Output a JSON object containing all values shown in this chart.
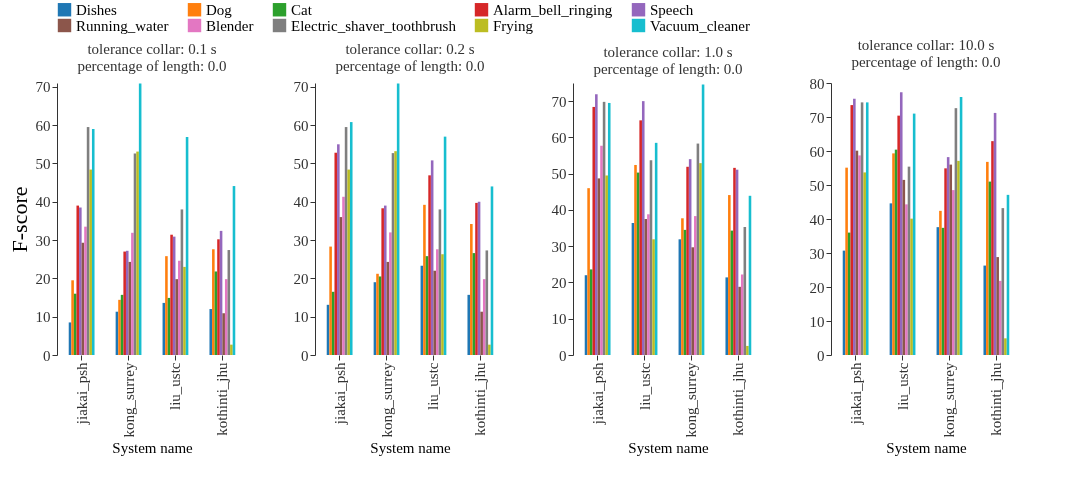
{
  "chart_data": [
    {
      "type": "bar",
      "title": "tolerance collar: 0.1 s\npercentage of length: 0.0",
      "xlabel": "System name",
      "ylabel": "F-score",
      "legend": "top",
      "grid": false,
      "categories": [
        "jiakai_psh",
        "kong_surrey",
        "liu_ustc",
        "kothinti_jhu"
      ],
      "ylim": [
        0,
        71
      ],
      "yticks": [
        0,
        10,
        20,
        30,
        40,
        50,
        60,
        70
      ],
      "series": [
        {
          "name": "Dishes",
          "color": "#1f77b4",
          "values": [
            8.5,
            11.3,
            13.6,
            12
          ]
        },
        {
          "name": "Dog",
          "color": "#ff7f0e",
          "values": [
            19.5,
            14.4,
            25.8,
            27.6
          ]
        },
        {
          "name": "Cat",
          "color": "#2ca02c",
          "values": [
            16,
            15.7,
            14.9,
            21.8
          ]
        },
        {
          "name": "Alarm_bell_ringing",
          "color": "#d62728",
          "values": [
            39,
            27,
            31.4,
            30.2
          ]
        },
        {
          "name": "Speech",
          "color": "#9467bd",
          "values": [
            38.5,
            27.2,
            30.9,
            32.4
          ]
        },
        {
          "name": "Running_water",
          "color": "#8c564b",
          "values": [
            29.3,
            24.3,
            19.8,
            10.9
          ]
        },
        {
          "name": "Blender",
          "color": "#e377c2",
          "values": [
            33.5,
            31.9,
            24.6,
            19.8
          ]
        },
        {
          "name": "Electric_shaver_toothbrush",
          "color": "#7f7f7f",
          "values": [
            59.5,
            52.6,
            38,
            27.4
          ]
        },
        {
          "name": "Frying",
          "color": "#bcbd22",
          "values": [
            48.4,
            53.1,
            23,
            2.7
          ]
        },
        {
          "name": "Vacuum_cleaner",
          "color": "#17becf",
          "values": [
            59,
            70.9,
            56.9,
            44.1
          ]
        }
      ]
    },
    {
      "type": "bar",
      "title": "tolerance collar: 0.2 s\npercentage of length: 0.0",
      "xlabel": "System name",
      "grid": false,
      "categories": [
        "jiakai_psh",
        "kong_surrey",
        "liu_ustc",
        "kothinti_jhu"
      ],
      "ylim": [
        0,
        71
      ],
      "yticks": [
        0,
        10,
        20,
        30,
        40,
        50,
        60,
        70
      ],
      "series": [
        {
          "name": "Dishes",
          "color": "#1f77b4",
          "values": [
            13.1,
            19,
            23.3,
            15.7
          ]
        },
        {
          "name": "Dog",
          "color": "#ff7f0e",
          "values": [
            28.3,
            21.2,
            39.2,
            34.2
          ]
        },
        {
          "name": "Cat",
          "color": "#2ca02c",
          "values": [
            16.5,
            20.5,
            25.8,
            26.6
          ]
        },
        {
          "name": "Alarm_bell_ringing",
          "color": "#d62728",
          "values": [
            52.8,
            38.3,
            46.9,
            39.7
          ]
        },
        {
          "name": "Speech",
          "color": "#9467bd",
          "values": [
            55,
            39,
            50.8,
            40
          ]
        },
        {
          "name": "Running_water",
          "color": "#8c564b",
          "values": [
            36,
            24.3,
            22,
            11.3
          ]
        },
        {
          "name": "Blender",
          "color": "#e377c2",
          "values": [
            41.3,
            32,
            27.6,
            19.8
          ]
        },
        {
          "name": "Electric_shaver_toothbrush",
          "color": "#7f7f7f",
          "values": [
            59.5,
            52.7,
            38,
            27.3
          ]
        },
        {
          "name": "Frying",
          "color": "#bcbd22",
          "values": [
            48.4,
            53.2,
            26.3,
            2.7
          ]
        },
        {
          "name": "Vacuum_cleaner",
          "color": "#17becf",
          "values": [
            60.8,
            70.9,
            57,
            44
          ]
        }
      ]
    },
    {
      "type": "bar",
      "title": "tolerance collar: 1.0 s\npercentage of length: 0.0",
      "xlabel": "System name",
      "grid": false,
      "categories": [
        "jiakai_psh",
        "liu_ustc",
        "kong_surrey",
        "kothinti_jhu"
      ],
      "ylim": [
        0,
        75
      ],
      "yticks": [
        0,
        10,
        20,
        30,
        40,
        50,
        60,
        70
      ],
      "series": [
        {
          "name": "Dishes",
          "color": "#1f77b4",
          "values": [
            22,
            36.4,
            31.9,
            21.4
          ]
        },
        {
          "name": "Dog",
          "color": "#ff7f0e",
          "values": [
            46,
            52.4,
            37.7,
            44.1
          ]
        },
        {
          "name": "Cat",
          "color": "#2ca02c",
          "values": [
            23.6,
            50.3,
            34.5,
            34.3
          ]
        },
        {
          "name": "Alarm_bell_ringing",
          "color": "#d62728",
          "values": [
            68.4,
            64.7,
            51.9,
            51.6
          ]
        },
        {
          "name": "Speech",
          "color": "#9467bd",
          "values": [
            71.9,
            70,
            54,
            51.1
          ]
        },
        {
          "name": "Running_water",
          "color": "#8c564b",
          "values": [
            48.7,
            37.5,
            29.7,
            18.8
          ]
        },
        {
          "name": "Blender",
          "color": "#e377c2",
          "values": [
            57.7,
            38.8,
            38.3,
            22.2
          ]
        },
        {
          "name": "Electric_shaver_toothbrush",
          "color": "#7f7f7f",
          "values": [
            69.8,
            53.7,
            58.3,
            35.3
          ]
        },
        {
          "name": "Frying",
          "color": "#bcbd22",
          "values": [
            49.5,
            31.9,
            52.9,
            2.5
          ]
        },
        {
          "name": "Vacuum_cleaner",
          "color": "#17becf",
          "values": [
            69.5,
            58.5,
            74.6,
            43.9
          ]
        }
      ]
    },
    {
      "type": "bar",
      "title": "tolerance collar: 10.0 s\npercentage of length: 0.0",
      "xlabel": "System name",
      "grid": false,
      "categories": [
        "jiakai_psh",
        "liu_ustc",
        "kong_surrey",
        "kothinti_jhu"
      ],
      "ylim": [
        0,
        80
      ],
      "yticks": [
        0,
        10,
        20,
        30,
        40,
        50,
        60,
        70,
        80
      ],
      "series": [
        {
          "name": "Dishes",
          "color": "#1f77b4",
          "values": [
            30.7,
            44.6,
            37.6,
            26.3
          ]
        },
        {
          "name": "Dog",
          "color": "#ff7f0e",
          "values": [
            55.1,
            59.3,
            42.4,
            56.8
          ]
        },
        {
          "name": "Cat",
          "color": "#2ca02c",
          "values": [
            36,
            60.4,
            37.4,
            51
          ]
        },
        {
          "name": "Alarm_bell_ringing",
          "color": "#d62728",
          "values": [
            73.5,
            70.4,
            54.9,
            62.9
          ]
        },
        {
          "name": "Speech",
          "color": "#9467bd",
          "values": [
            75.4,
            77.3,
            58.2,
            71.2
          ]
        },
        {
          "name": "Running_water",
          "color": "#8c564b",
          "values": [
            60.1,
            51.5,
            56,
            28.8
          ]
        },
        {
          "name": "Blender",
          "color": "#e377c2",
          "values": [
            58.7,
            44.3,
            48.5,
            21.8
          ]
        },
        {
          "name": "Electric_shaver_toothbrush",
          "color": "#7f7f7f",
          "values": [
            74.3,
            55.4,
            72.6,
            43.2
          ]
        },
        {
          "name": "Frying",
          "color": "#bcbd22",
          "values": [
            53.7,
            40.1,
            57.1,
            4.9
          ]
        },
        {
          "name": "Vacuum_cleaner",
          "color": "#17becf",
          "values": [
            74.3,
            71,
            75.9,
            47.1
          ]
        }
      ]
    }
  ]
}
